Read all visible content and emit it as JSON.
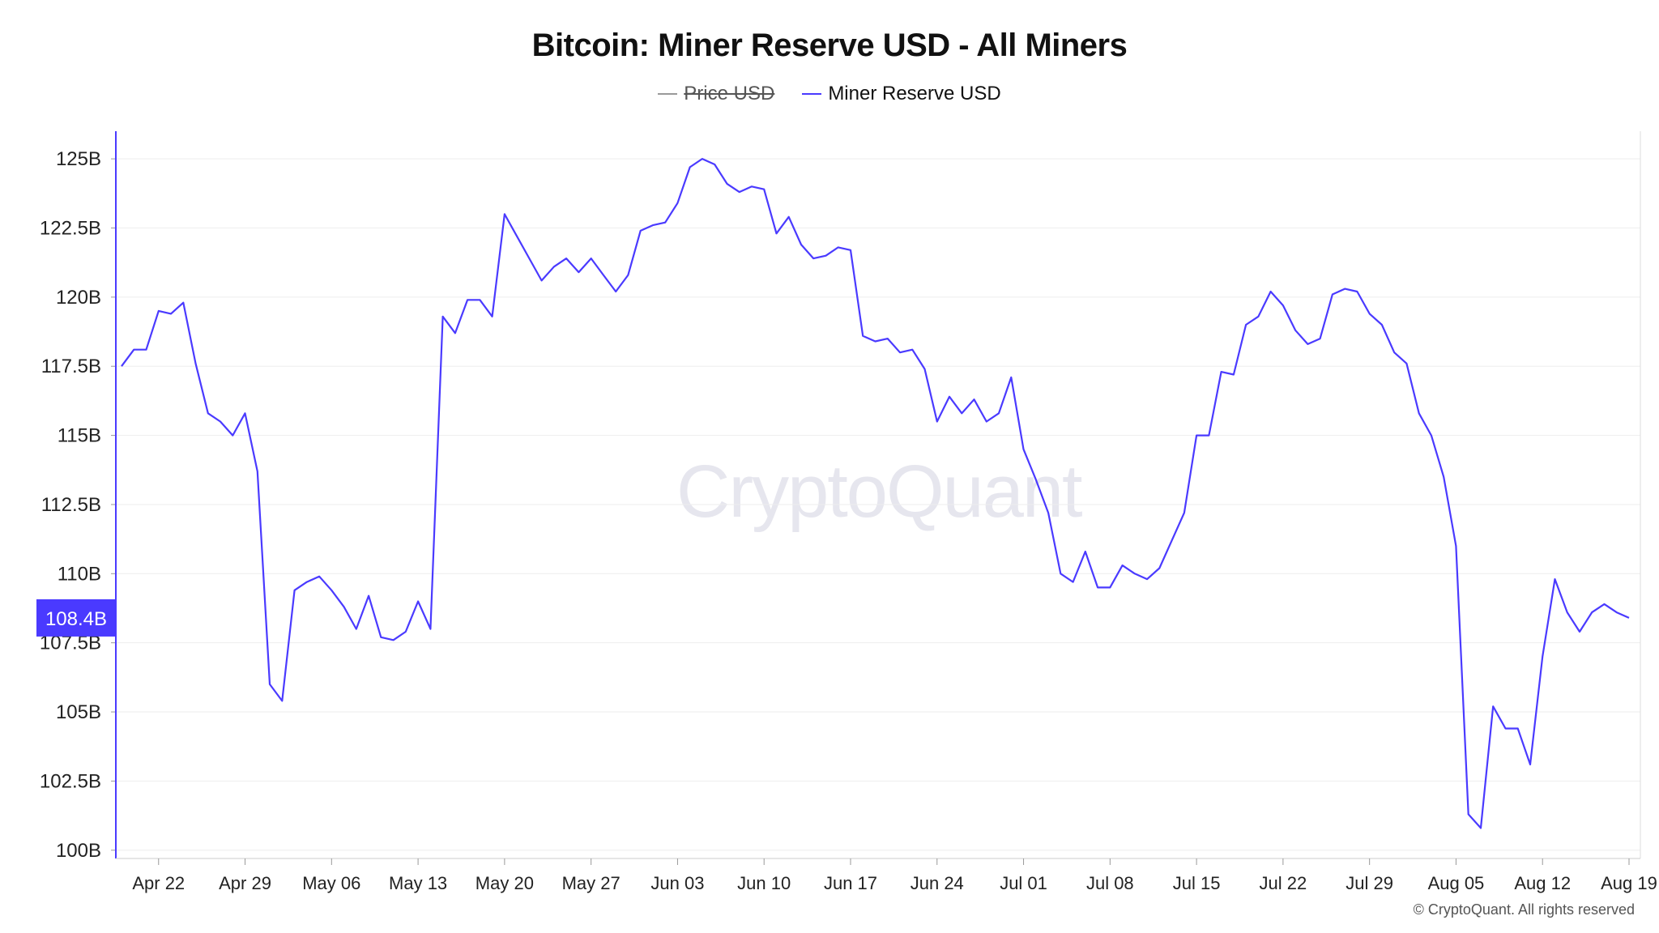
{
  "chart_data": {
    "type": "line",
    "title": "Bitcoin: Miner Reserve USD - All Miners",
    "legend": [
      {
        "name": "Price USD",
        "color": "#999999",
        "hidden": true
      },
      {
        "name": "Miner Reserve USD",
        "color": "#4a3aff",
        "hidden": false
      }
    ],
    "y_ticks": [
      "100B",
      "102.5B",
      "105B",
      "107.5B",
      "110B",
      "112.5B",
      "115B",
      "117.5B",
      "120B",
      "122.5B",
      "125B"
    ],
    "ylim": [
      99.7,
      126
    ],
    "x_ticks": [
      "Apr 22",
      "Apr 29",
      "May 06",
      "May 13",
      "May 20",
      "May 27",
      "Jun 03",
      "Jun 10",
      "Jun 17",
      "Jun 24",
      "Jul 01",
      "Jul 08",
      "Jul 15",
      "Jul 22",
      "Jul 29",
      "Aug 05",
      "Aug 12",
      "Aug 19"
    ],
    "current_value_label": "108.4B",
    "current_value": 108.4,
    "series": [
      {
        "name": "Miner Reserve USD",
        "unit": "B USD",
        "values": [
          117.5,
          118.1,
          118.1,
          119.5,
          119.4,
          119.8,
          117.6,
          115.8,
          115.5,
          115.0,
          115.8,
          113.7,
          106.0,
          105.4,
          109.4,
          109.7,
          109.9,
          109.4,
          108.8,
          108.0,
          109.2,
          107.7,
          107.6,
          107.9,
          109.0,
          108.0,
          119.3,
          118.7,
          119.9,
          119.9,
          119.3,
          123.0,
          122.2,
          121.4,
          120.6,
          121.1,
          121.4,
          120.9,
          121.4,
          120.8,
          120.2,
          120.8,
          122.4,
          122.6,
          122.7,
          123.4,
          124.7,
          125.0,
          124.8,
          124.1,
          123.8,
          124.0,
          123.9,
          122.3,
          122.9,
          121.9,
          121.4,
          121.5,
          121.8,
          121.7,
          118.6,
          118.4,
          118.5,
          118.0,
          118.1,
          117.4,
          115.5,
          116.4,
          115.8,
          116.3,
          115.5,
          115.8,
          117.1,
          114.5,
          113.4,
          112.2,
          110.0,
          109.7,
          110.8,
          109.5,
          109.5,
          110.3,
          110.0,
          109.8,
          110.2,
          111.2,
          112.2,
          115.0,
          115.0,
          117.3,
          117.2,
          119.0,
          119.3,
          120.2,
          119.7,
          118.8,
          118.3,
          118.5,
          120.1,
          120.3,
          120.2,
          119.4,
          119.0,
          118.0,
          117.6,
          115.8,
          115.0,
          113.5,
          111.0,
          101.3,
          100.8,
          105.2,
          104.4,
          104.4,
          103.1,
          107.0,
          109.8,
          108.6,
          107.9,
          108.6,
          108.9,
          108.6,
          108.4
        ]
      }
    ],
    "grid": true
  },
  "watermark": "CryptoQuant",
  "copyright": "© CryptoQuant. All rights reserved",
  "colors": {
    "line": "#4a3aff",
    "axis": "#4a3aff",
    "grid": "#eeeeee",
    "badge": "#4a3aff"
  }
}
